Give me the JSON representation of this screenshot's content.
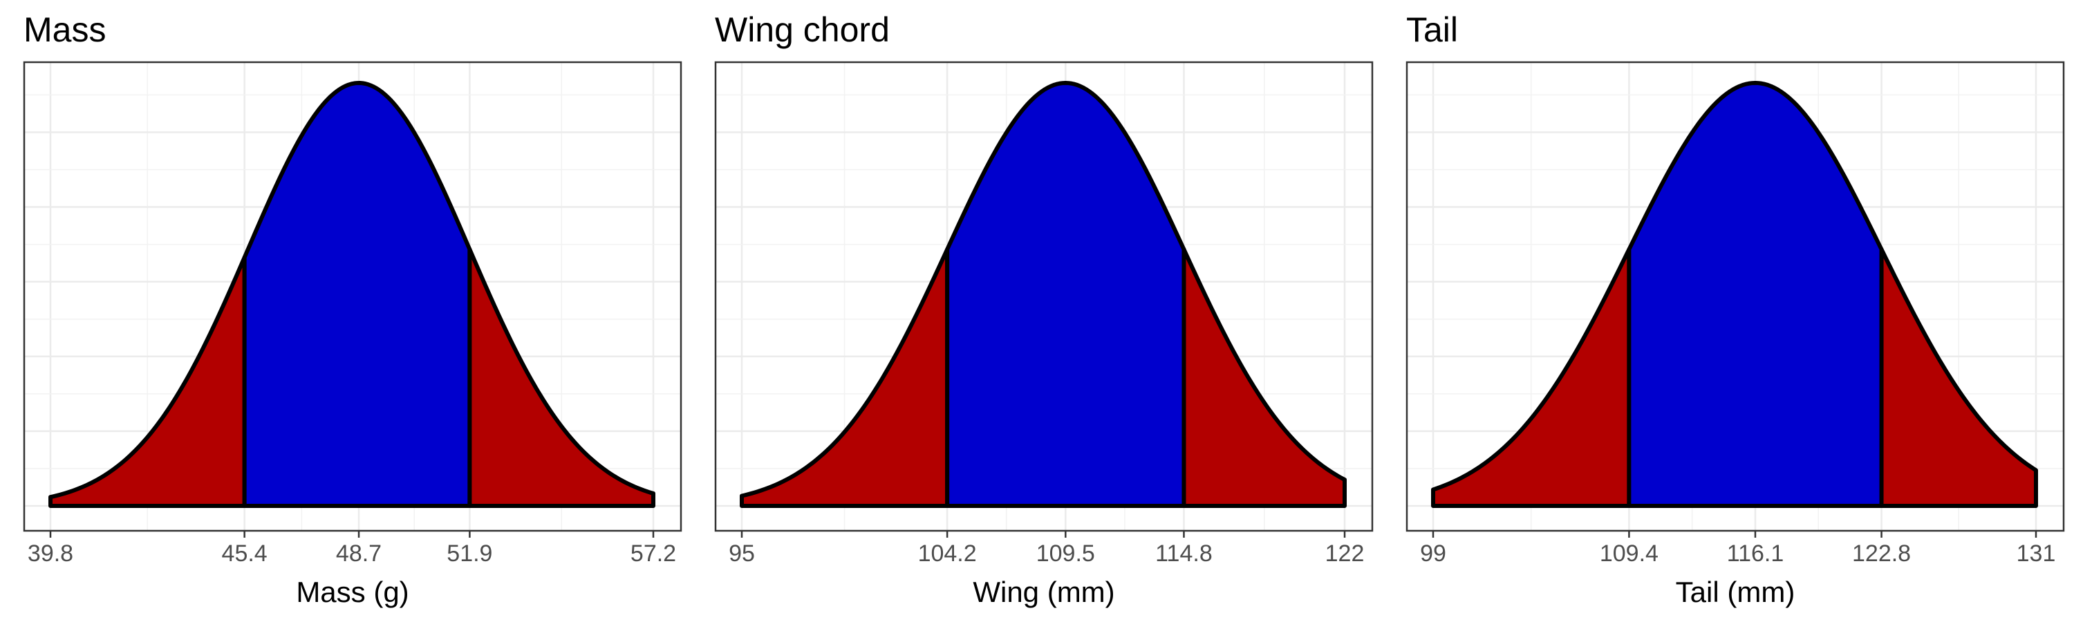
{
  "chart_data": [
    {
      "type": "area",
      "title": "Mass",
      "xlabel": "Mass (g)",
      "ylabel": "",
      "mean": 48.7,
      "sd": 3.2,
      "xlim": [
        39.8,
        57.2
      ],
      "central_interval": [
        45.4,
        51.9
      ],
      "x_ticks": [
        39.8,
        45.4,
        48.7,
        51.9,
        57.2
      ],
      "x_tick_labels": [
        "39.8",
        "45.4",
        "48.7",
        "51.9",
        "57.2"
      ],
      "y_ticks_shown": false,
      "grid": true,
      "fill_colors": {
        "central": "#0000CD",
        "tails": "#B20000"
      },
      "outline_color": "#000000"
    },
    {
      "type": "area",
      "title": "Wing chord",
      "xlabel": "Wing (mm)",
      "ylabel": "",
      "mean": 109.5,
      "sd": 5.3,
      "xlim": [
        95,
        122
      ],
      "central_interval": [
        104.2,
        114.8
      ],
      "x_ticks": [
        95,
        104.2,
        109.5,
        114.8,
        122
      ],
      "x_tick_labels": [
        "95",
        "104.2",
        "109.5",
        "114.8",
        "122"
      ],
      "y_ticks_shown": false,
      "grid": true,
      "fill_colors": {
        "central": "#0000CD",
        "tails": "#B20000"
      },
      "outline_color": "#000000"
    },
    {
      "type": "area",
      "title": "Tail",
      "xlabel": "Tail (mm)",
      "ylabel": "",
      "mean": 116.1,
      "sd": 6.7,
      "xlim": [
        99,
        131
      ],
      "central_interval": [
        109.4,
        122.8
      ],
      "x_ticks": [
        99,
        109.4,
        116.1,
        122.8,
        131
      ],
      "x_tick_labels": [
        "99",
        "109.4",
        "116.1",
        "122.8",
        "131"
      ],
      "y_ticks_shown": false,
      "grid": true,
      "fill_colors": {
        "central": "#0000CD",
        "tails": "#B20000"
      },
      "outline_color": "#000000"
    }
  ]
}
